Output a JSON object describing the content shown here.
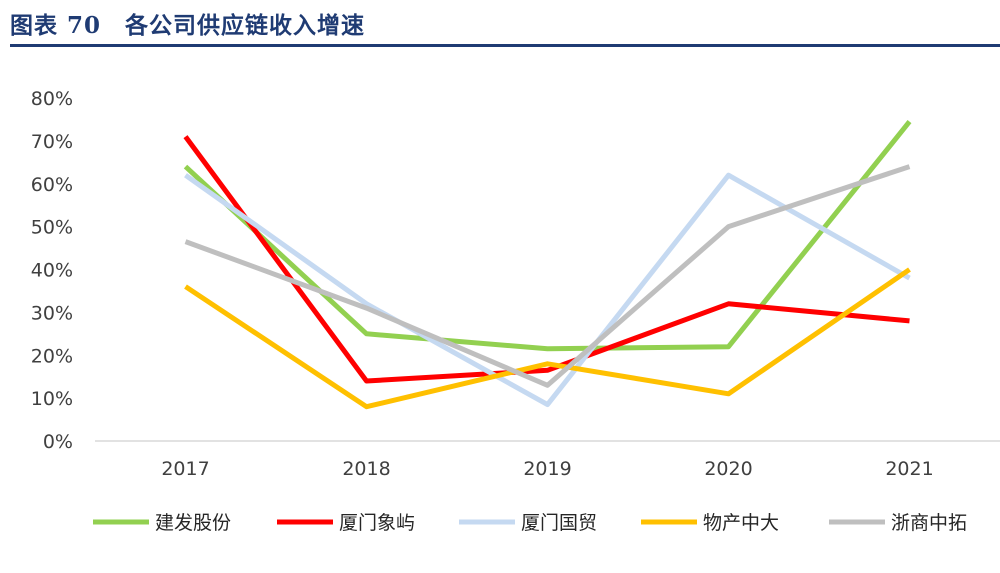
{
  "header": {
    "title": "图表 70　各公司供应链收入增速"
  },
  "chart_data": {
    "type": "line",
    "title": "图表 70　各公司供应链收入增速",
    "categories": [
      "2017",
      "2018",
      "2019",
      "2020",
      "2021"
    ],
    "y_ticks": [
      "0%",
      "10%",
      "20%",
      "30%",
      "40%",
      "50%",
      "60%",
      "70%",
      "80%"
    ],
    "ylim": [
      0,
      80
    ],
    "unit": "%",
    "grid": false,
    "legend_position": "bottom",
    "series": [
      {
        "name": "建发股份",
        "color": "#92d050",
        "values": [
          64,
          25,
          21.5,
          22,
          74.5
        ]
      },
      {
        "name": "厦门象屿",
        "color": "#ff0000",
        "values": [
          71,
          14,
          16.5,
          32,
          28
        ]
      },
      {
        "name": "厦门国贸",
        "color": "#c5d9f1",
        "values": [
          62,
          32,
          8.5,
          62,
          38
        ]
      },
      {
        "name": "物产中大",
        "color": "#ffc000",
        "values": [
          36,
          8,
          18,
          11,
          40
        ]
      },
      {
        "name": "浙商中拓",
        "color": "#bfbfbf",
        "values": [
          46.5,
          31,
          13,
          50,
          64
        ]
      }
    ]
  }
}
